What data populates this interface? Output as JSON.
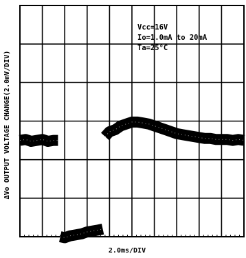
{
  "chart_data": {
    "type": "line",
    "title": "",
    "xlabel": "2.0ms/DIV",
    "ylabel": "ΔVo OUTPUT VOLTAGE CHANGE(2.0mV/DIV)",
    "annotations": [
      "Vcc=16V",
      "Io=1.0mA to 20mA",
      "Ta=25°C"
    ],
    "x_unit": "ms",
    "y_unit": "mV",
    "xlim": [
      0,
      20
    ],
    "ylim": [
      -5,
      7
    ],
    "grid": true,
    "series": [
      {
        "x": [
          0.0,
          0.5,
          1.0,
          1.5,
          2.0,
          2.5,
          3.0,
          3.4,
          3.6,
          4.0,
          4.5,
          5.0,
          5.5,
          6.0,
          6.5,
          7.0,
          7.4,
          7.6,
          8.0,
          8.5,
          9.0,
          9.5,
          10.0,
          10.5,
          11.0,
          11.5,
          12.0,
          12.5,
          13.0,
          13.5,
          14.0,
          14.5,
          15.0,
          15.5,
          16.0,
          16.5,
          17.0,
          17.5,
          18.0,
          18.5,
          19.0,
          19.5,
          20.0
        ],
        "y": [
          0.0,
          0.05,
          -0.05,
          0.0,
          0.05,
          -0.05,
          0.0,
          0.0,
          -5.0,
          -5.05,
          -4.95,
          -4.9,
          -4.85,
          -4.75,
          -4.7,
          -4.65,
          -4.6,
          0.2,
          0.45,
          0.55,
          0.75,
          0.85,
          0.95,
          0.95,
          0.9,
          0.85,
          0.75,
          0.65,
          0.55,
          0.45,
          0.35,
          0.3,
          0.25,
          0.2,
          0.15,
          0.1,
          0.1,
          0.05,
          0.05,
          0.05,
          0.0,
          0.05,
          0.0
        ]
      }
    ]
  }
}
